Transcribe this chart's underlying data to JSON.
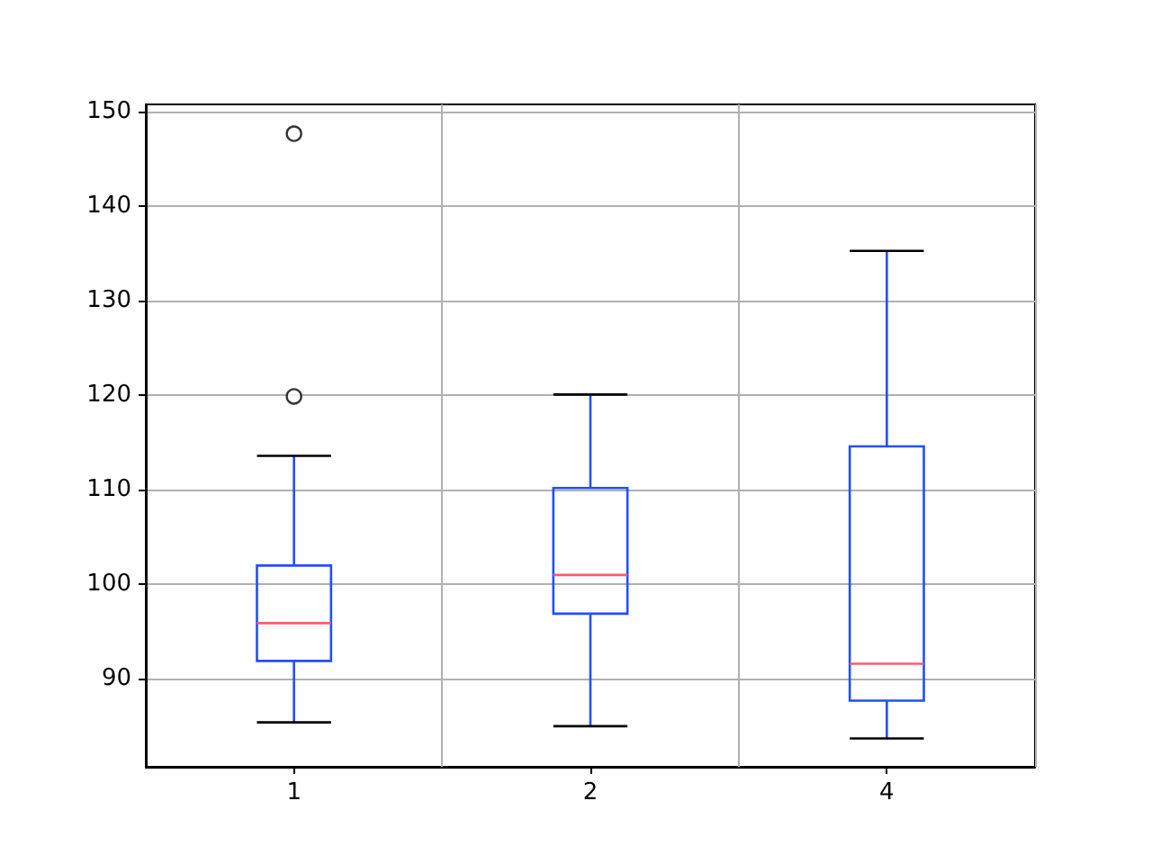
{
  "chart_data": {
    "type": "box",
    "categories": [
      "1",
      "2",
      "4"
    ],
    "color": "#1f4fff",
    "boxes": [
      {
        "low": 85.4,
        "q1": 91.9,
        "median": 95.9,
        "q3": 102.0,
        "high": 113.6,
        "outliers": [
          119.9,
          147.7
        ]
      },
      {
        "low": 85.0,
        "q1": 96.9,
        "median": 101.0,
        "q3": 110.2,
        "high": 120.1
      },
      {
        "low": 83.7,
        "q1": 87.7,
        "median": 91.6,
        "q3": 114.6,
        "high": 135.3
      }
    ],
    "ylim": [
      80.7,
      150.8
    ],
    "yticks": [
      90,
      100,
      110,
      120,
      130,
      140,
      150
    ],
    "grid": true
  }
}
